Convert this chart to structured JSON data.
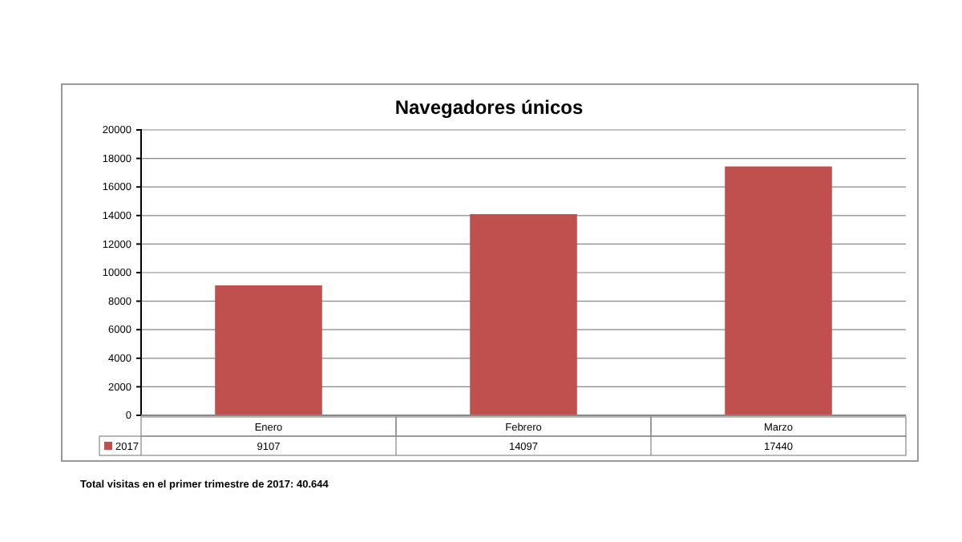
{
  "chart_data": {
    "type": "bar",
    "title": "Navegadores únicos",
    "categories": [
      "Enero",
      "Febrero",
      "Marzo"
    ],
    "series": [
      {
        "name": "2017",
        "color": "#c0504d",
        "values": [
          9107,
          14097,
          17440
        ]
      }
    ],
    "ylim": [
      0,
      20000
    ],
    "yticks": [
      0,
      2000,
      4000,
      6000,
      8000,
      10000,
      12000,
      14000,
      16000,
      18000,
      20000
    ],
    "grid": "y",
    "legend": "bottom",
    "data_labels": true,
    "annotations": [
      "Total visitas en el primer trimestre de 2017: 40.644"
    ]
  }
}
